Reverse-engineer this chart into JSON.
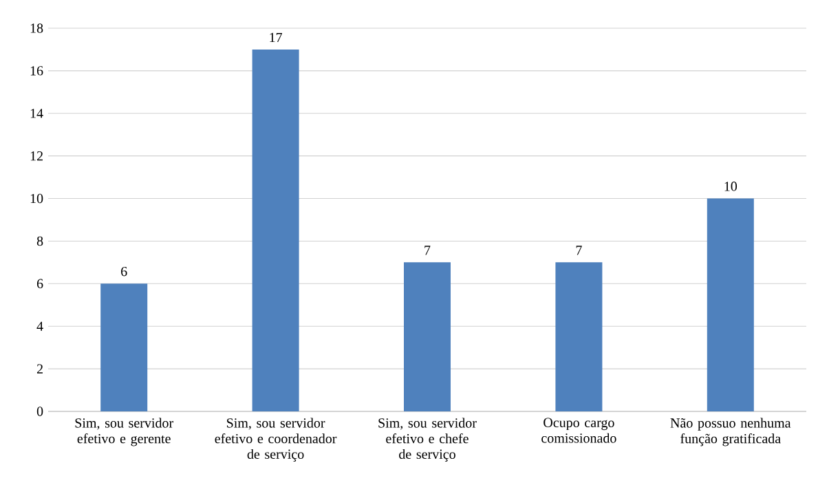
{
  "chart_data": {
    "type": "bar",
    "categories": [
      "Sim, sou servidor efetivo e gerente",
      "Sim, sou servidor efetivo e coordenador de serviço",
      "Sim, sou servidor efetivo e chefe de serviço",
      "Ocupo cargo comissionado",
      "Não possuo nenhuma função gratificada"
    ],
    "values": [
      6,
      17,
      7,
      7,
      10
    ],
    "color": "#4f81bd",
    "ylim": [
      0,
      18
    ],
    "yticks": [
      0,
      2,
      4,
      6,
      8,
      10,
      12,
      14,
      16,
      18
    ],
    "grid": "y",
    "data_labels": true
  }
}
